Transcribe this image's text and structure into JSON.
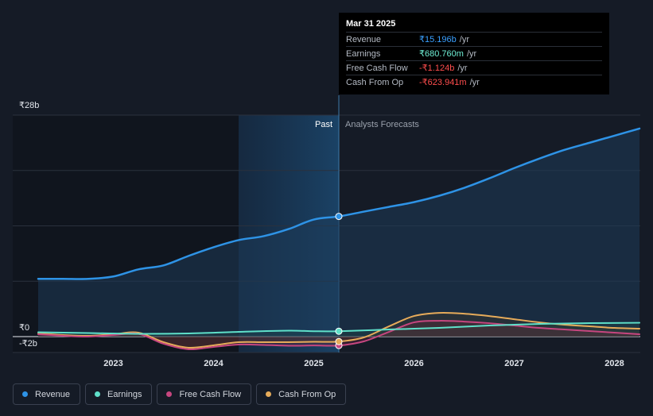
{
  "colors": {
    "background": "#151b26",
    "revenue": "#2e93e6",
    "earnings": "#5fe0c9",
    "fcf": "#c6467f",
    "cfo": "#e6ab5a",
    "negative": "#ff4d4d",
    "revenue_text": "#3aa0ff",
    "earnings_text": "#6fefd5"
  },
  "chart_data": {
    "type": "line",
    "title": "",
    "y_tick_labels": [
      "₹28b",
      "₹0",
      "-₹2b"
    ],
    "x_tick_labels": [
      "2023",
      "2024",
      "2025",
      "2026",
      "2027",
      "2028"
    ],
    "x_ticks": [
      2023,
      2024,
      2025,
      2026,
      2027,
      2028
    ],
    "xlim": [
      2022.25,
      2028.25
    ],
    "ylim": [
      -2,
      28
    ],
    "past_label": "Past",
    "forecast_label": "Analysts Forecasts",
    "highlight_range": [
      2024.25,
      2025.25
    ],
    "divider_x": 2025.25,
    "series": [
      {
        "name": "Revenue",
        "key": "revenue",
        "x": [
          2022.25,
          2022.5,
          2022.75,
          2023.0,
          2023.25,
          2023.5,
          2023.75,
          2024.0,
          2024.25,
          2024.5,
          2024.75,
          2025.0,
          2025.25,
          2025.5,
          2025.75,
          2026.0,
          2026.25,
          2026.5,
          2026.75,
          2027.0,
          2027.25,
          2027.5,
          2027.75,
          2028.0,
          2028.25
        ],
        "values": [
          7.3,
          7.3,
          7.3,
          7.6,
          8.5,
          9.0,
          10.2,
          11.3,
          12.2,
          12.7,
          13.6,
          14.8,
          15.196,
          15.8,
          16.4,
          17.0,
          17.8,
          18.8,
          20.0,
          21.3,
          22.5,
          23.6,
          24.5,
          25.4,
          26.3
        ]
      },
      {
        "name": "Earnings",
        "key": "earnings",
        "x": [
          2022.25,
          2022.75,
          2023.25,
          2023.75,
          2024.25,
          2024.75,
          2025.0,
          2025.25,
          2025.75,
          2026.25,
          2026.75,
          2027.25,
          2027.75,
          2028.25
        ],
        "values": [
          0.55,
          0.45,
          0.35,
          0.4,
          0.6,
          0.75,
          0.68,
          0.68,
          0.9,
          1.1,
          1.4,
          1.6,
          1.7,
          1.75
        ]
      },
      {
        "name": "Free Cash Flow",
        "key": "fcf",
        "x": [
          2022.25,
          2022.5,
          2022.75,
          2023.0,
          2023.25,
          2023.5,
          2023.75,
          2024.0,
          2024.25,
          2024.5,
          2024.75,
          2025.0,
          2025.25,
          2025.5,
          2025.75,
          2026.0,
          2026.25,
          2026.5,
          2026.75,
          2027.0,
          2027.25,
          2027.5,
          2027.75,
          2028.0,
          2028.25
        ],
        "values": [
          0.3,
          0.1,
          0.0,
          0.2,
          0.35,
          -0.9,
          -1.6,
          -1.3,
          -1.0,
          -1.05,
          -1.15,
          -1.12,
          -1.124,
          -0.6,
          0.6,
          1.8,
          2.0,
          1.9,
          1.7,
          1.4,
          1.1,
          0.9,
          0.7,
          0.5,
          0.3
        ]
      },
      {
        "name": "Cash From Op",
        "key": "cfo",
        "x": [
          2022.25,
          2022.5,
          2022.75,
          2023.0,
          2023.25,
          2023.5,
          2023.75,
          2024.0,
          2024.25,
          2024.5,
          2024.75,
          2025.0,
          2025.25,
          2025.5,
          2025.75,
          2026.0,
          2026.25,
          2026.5,
          2026.75,
          2027.0,
          2027.25,
          2027.5,
          2027.75,
          2028.0,
          2028.25
        ],
        "values": [
          0.4,
          0.2,
          0.1,
          0.3,
          0.5,
          -0.7,
          -1.4,
          -1.1,
          -0.7,
          -0.7,
          -0.7,
          -0.65,
          -0.624,
          -0.1,
          1.3,
          2.6,
          3.0,
          2.9,
          2.6,
          2.2,
          1.8,
          1.5,
          1.3,
          1.1,
          1.0
        ]
      }
    ],
    "tooltip": {
      "date": "Mar 31 2025",
      "rows": [
        {
          "label": "Revenue",
          "value": "₹15.196b",
          "unit": "/yr",
          "key": "revenue_text"
        },
        {
          "label": "Earnings",
          "value": "₹680.760m",
          "unit": "/yr",
          "key": "earnings_text"
        },
        {
          "label": "Free Cash Flow",
          "value": "-₹1.124b",
          "unit": "/yr",
          "key": "negative"
        },
        {
          "label": "Cash From Op",
          "value": "-₹623.941m",
          "unit": "/yr",
          "key": "negative"
        }
      ]
    },
    "legend": [
      {
        "label": "Revenue",
        "key": "revenue"
      },
      {
        "label": "Earnings",
        "key": "earnings"
      },
      {
        "label": "Free Cash Flow",
        "key": "fcf"
      },
      {
        "label": "Cash From Op",
        "key": "cfo"
      }
    ]
  }
}
